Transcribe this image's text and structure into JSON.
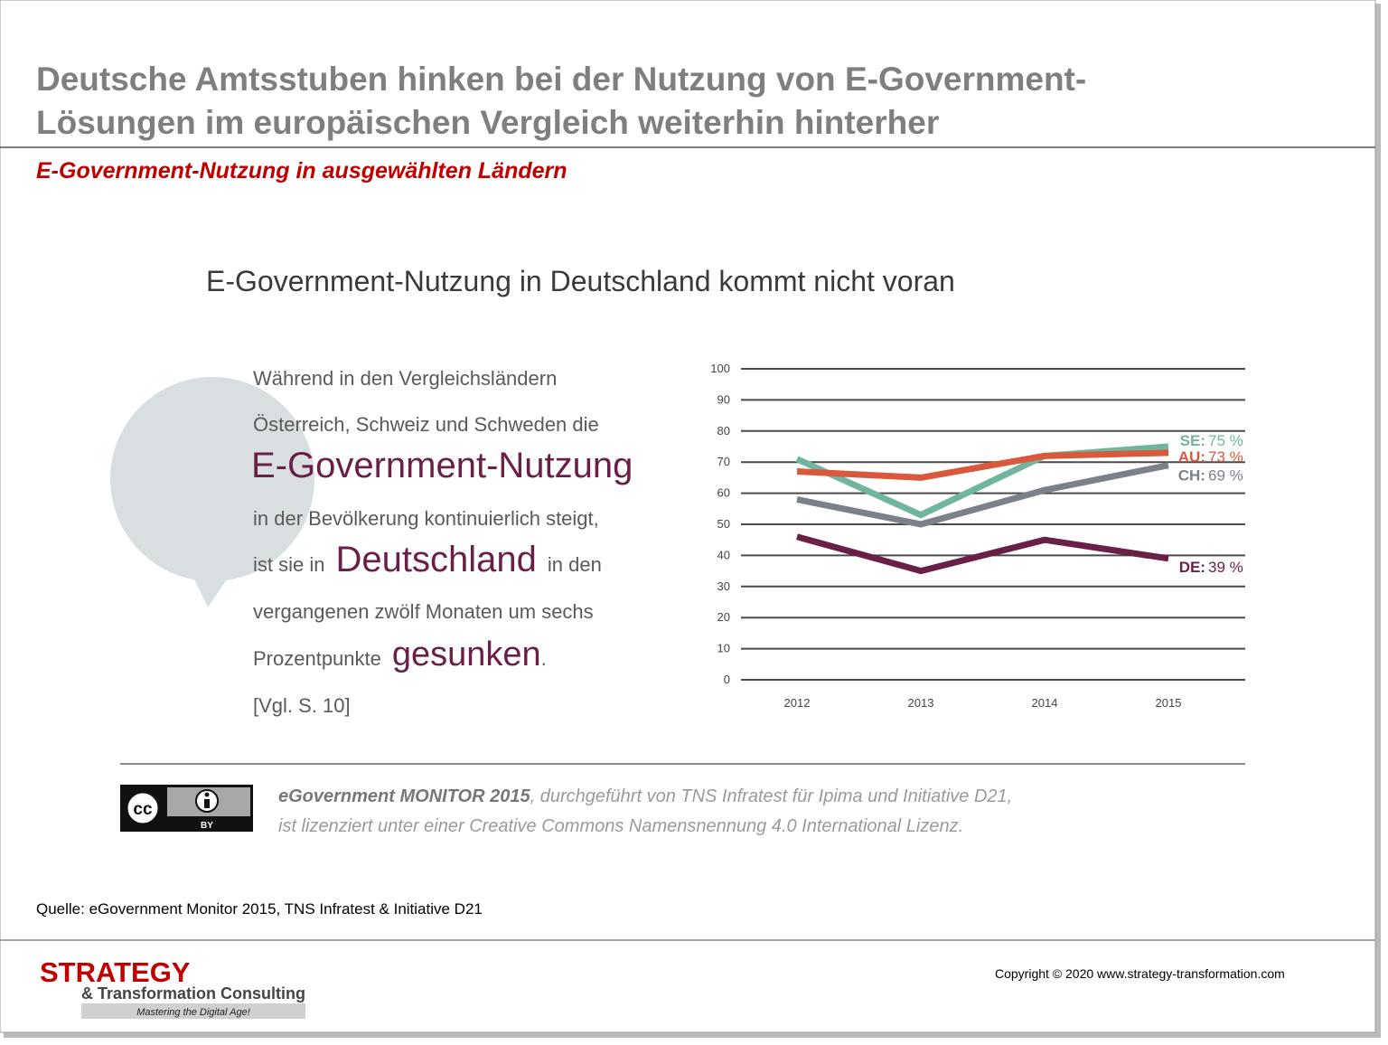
{
  "header": {
    "title_line1": "Deutsche Amtsstuben hinken bei der Nutzung von E-Government-",
    "title_line2": "Lösungen im europäischen Vergleich weiterhin hinterher",
    "subtitle": "E-Government-Nutzung in ausgewählten Ländern"
  },
  "chart_data": {
    "type": "line",
    "title": "E-Government-Nutzung in Deutschland kommt nicht voran",
    "categories": [
      "2012",
      "2013",
      "2014",
      "2015"
    ],
    "series": [
      {
        "name": "SE:",
        "color": "#72b59d",
        "values": [
          71,
          53,
          72,
          75
        ],
        "value_labels": [
          null,
          null,
          null,
          "75 %"
        ]
      },
      {
        "name": "AU:",
        "color": "#d8593b",
        "values": [
          67,
          65,
          72,
          73
        ],
        "value_labels": [
          null,
          null,
          null,
          "73 %"
        ]
      },
      {
        "name": "CH:",
        "color": "#7c8088",
        "values": [
          58,
          50,
          61,
          69
        ],
        "value_labels": [
          null,
          null,
          null,
          "69 %"
        ]
      },
      {
        "name": "DE:",
        "color": "#6a1f47",
        "values": [
          46,
          35,
          45,
          39
        ],
        "value_labels": [
          null,
          null,
          null,
          "39 %"
        ]
      }
    ],
    "ylim": [
      0,
      100
    ],
    "yticks": [
      0,
      10,
      20,
      30,
      40,
      50,
      60,
      70,
      80,
      90,
      100
    ],
    "grid": true
  },
  "callout": {
    "line1": "Während in den Vergleichsländern",
    "line2": "Österreich, Schweiz und Schweden die",
    "highlight1": "E-Government-Nutzung",
    "line3": "in der Bevölkerung kontinuierlich steigt,",
    "line4a": "ist sie in",
    "highlight2": "Deutschland",
    "line4b": "in den",
    "line5": "vergangenen zwölf Monaten um sechs",
    "line6a": "Prozentpunkte",
    "highlight3": "gesunken",
    "line6b": ".",
    "ref": "[Vgl. S. 10]"
  },
  "license": {
    "cc": "cc",
    "by": "BY",
    "source_name": "eGovernment MONITOR 2015",
    "line1": ", durchgeführt von TNS Infratest für Ipima und Initiative D21,",
    "line2": "ist lizenziert unter einer Creative Commons Namensnennung 4.0 International Lizenz."
  },
  "footer": {
    "source": "Quelle: eGovernment Monitor 2015, TNS Infratest & Initiative D21",
    "logo_main": "STRATEGY",
    "logo_sub": "& Transformation Consulting",
    "tagline": "Mastering the Digital Age!",
    "copyright": "Copyright © 2020 www.strategy-transformation.com"
  }
}
